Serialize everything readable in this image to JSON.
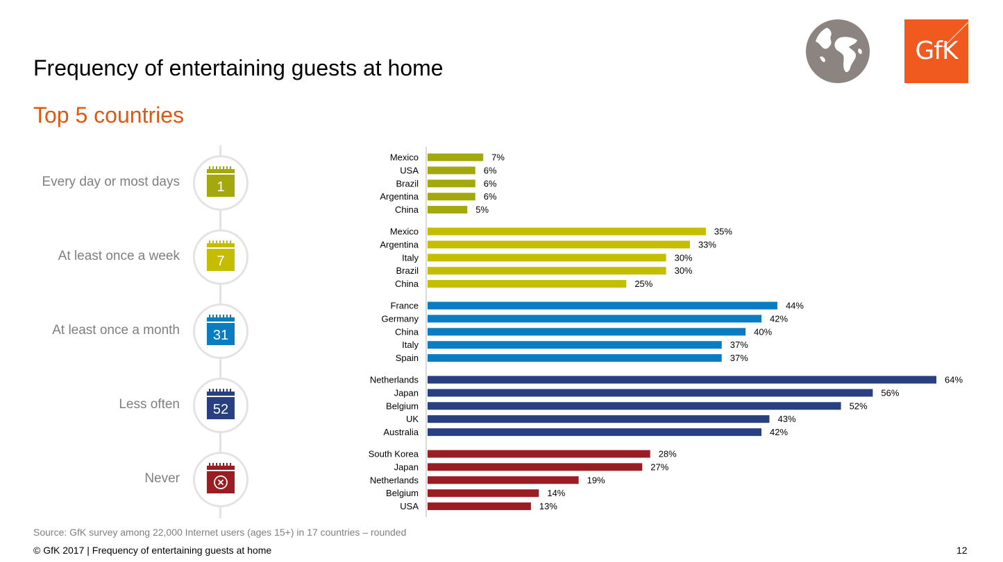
{
  "header": {
    "title": "Frequency of entertaining guests at home",
    "subtitle": "Top 5 countries",
    "subtitle_color": "#e0570f",
    "logo_text": "GfK",
    "logo_color": "#f05a1e",
    "globe_color": "#8b8480"
  },
  "categories": [
    {
      "label": "Every day or most days",
      "icon_number": "1",
      "color": "#a3a80d"
    },
    {
      "label": "At least once a week",
      "icon_number": "7",
      "color": "#c4bd00"
    },
    {
      "label": "At least once a month",
      "icon_number": "31",
      "color": "#0a7cc1"
    },
    {
      "label": "Less often",
      "icon_number": "52",
      "color": "#283f80"
    },
    {
      "label": "Never",
      "icon_number": "",
      "icon": "x-circle-icon",
      "color": "#9b1d24"
    }
  ],
  "chart_data": {
    "type": "bar",
    "orientation": "horizontal",
    "title": "Frequency of entertaining guests at home",
    "subtitle": "Top 5 countries",
    "unit": "%",
    "xlim": [
      0,
      64
    ],
    "grid": false,
    "groups": [
      {
        "name": "Every day or most days",
        "color": "#a3a80d",
        "categories": [
          "Mexico",
          "USA",
          "Brazil",
          "Argentina",
          "China"
        ],
        "values": [
          7,
          6,
          6,
          6,
          5
        ]
      },
      {
        "name": "At least once a week",
        "color": "#c4bd00",
        "categories": [
          "Mexico",
          "Argentina",
          "Italy",
          "Brazil",
          "China"
        ],
        "values": [
          35,
          33,
          30,
          30,
          25
        ]
      },
      {
        "name": "At least once a month",
        "color": "#0a7cc1",
        "categories": [
          "France",
          "Germany",
          "China",
          "Italy",
          "Spain"
        ],
        "values": [
          44,
          42,
          40,
          37,
          37
        ]
      },
      {
        "name": "Less often",
        "color": "#283f80",
        "categories": [
          "Netherlands",
          "Japan",
          "Belgium",
          "UK",
          "Australia"
        ],
        "values": [
          64,
          56,
          52,
          43,
          42
        ]
      },
      {
        "name": "Never",
        "color": "#9b1d24",
        "categories": [
          "South Korea",
          "Japan",
          "Netherlands",
          "Belgium",
          "USA"
        ],
        "values": [
          28,
          27,
          19,
          14,
          13
        ]
      }
    ]
  },
  "footer": {
    "source": "Source: GfK survey among 22,000 Internet users (ages 15+) in 17 countries – rounded",
    "copyright": "© GfK 2017 | Frequency of entertaining guests at home",
    "page_number": "12"
  }
}
